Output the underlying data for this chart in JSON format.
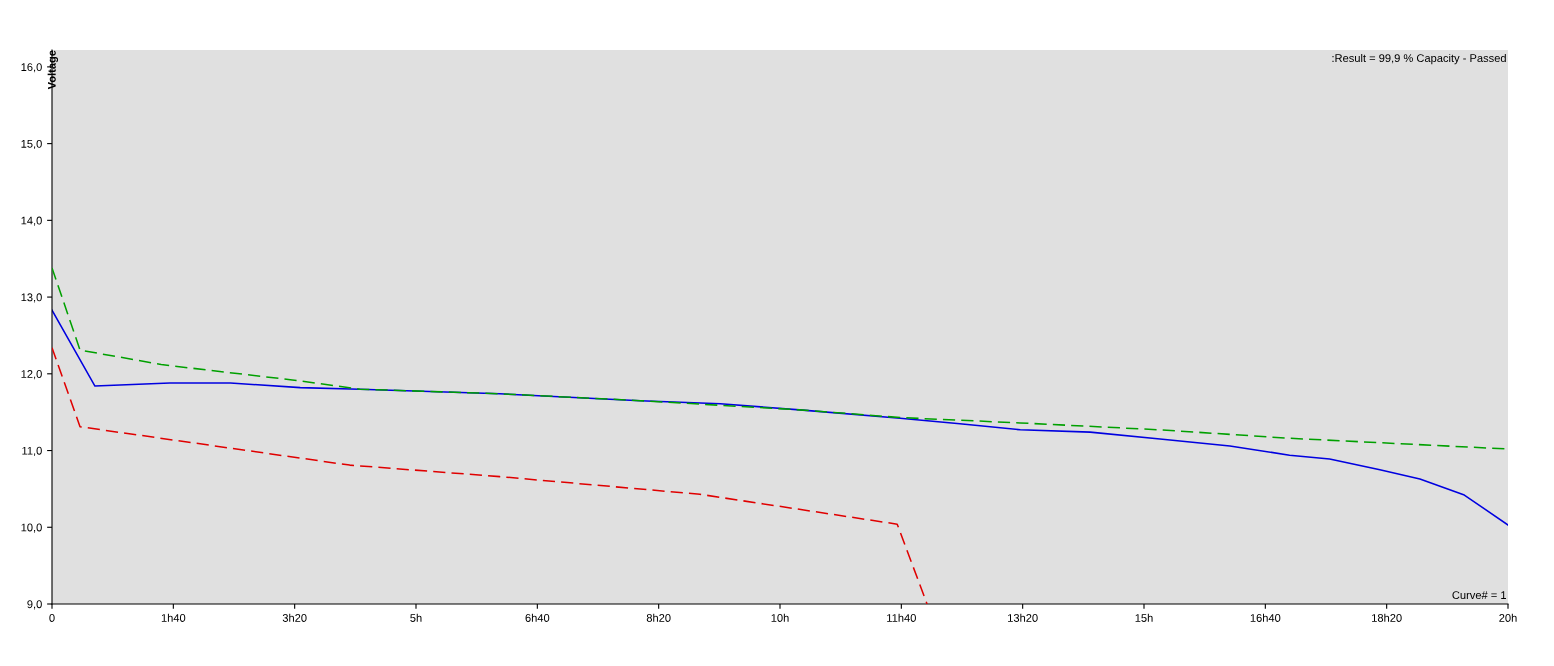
{
  "chart_data": {
    "type": "line",
    "ylabel": "Voltage",
    "annotations": [
      ":Result = 99,9 % Capacity - Passed",
      "Curve# = 1"
    ],
    "series": [
      {
        "color": "#00a000",
        "line_style": "dashed",
        "x": [
          0,
          0.385,
          1.5,
          3.3,
          4.23,
          6.15,
          8.08,
          10.27,
          11.65,
          13.3,
          15.22,
          17.0,
          20
        ],
        "values": [
          13.38,
          12.31,
          12.12,
          11.92,
          11.8,
          11.74,
          11.65,
          11.53,
          11.43,
          11.36,
          11.27,
          11.16,
          11.02
        ]
      },
      {
        "color": "#0000e0",
        "line_style": "solid",
        "x": [
          0,
          0.59,
          1.62,
          2.45,
          3.41,
          4.23,
          6.15,
          8.08,
          9.18,
          10.27,
          11.65,
          12.47,
          13.3,
          14.26,
          15.22,
          16.18,
          17.0,
          17.55,
          18.24,
          18.79,
          19.4,
          20
        ],
        "values": [
          12.83,
          11.84,
          11.88,
          11.88,
          11.82,
          11.8,
          11.74,
          11.65,
          11.61,
          11.53,
          11.42,
          11.35,
          11.27,
          11.24,
          11.15,
          11.06,
          10.94,
          10.89,
          10.75,
          10.63,
          10.42,
          10.03
        ]
      },
      {
        "color": "#e00000",
        "line_style": "dashed",
        "x": [
          0,
          0.385,
          4.09,
          6.15,
          8.9,
          11.61,
          12.02
        ],
        "values": [
          12.34,
          11.31,
          10.81,
          10.66,
          10.43,
          10.04,
          9.0
        ]
      }
    ],
    "xlim": [
      0,
      20
    ],
    "ylim": [
      9,
      16.22
    ],
    "xticks": [
      0,
      {
        "value": 1.6667,
        "label": "1h40"
      },
      {
        "value": 3.3333,
        "label": "3h20"
      },
      {
        "value": 5,
        "label": "5h"
      },
      {
        "value": 6.6667,
        "label": "6h40"
      },
      {
        "value": 8.3333,
        "label": "8h20"
      },
      {
        "value": 10,
        "label": "10h"
      },
      {
        "value": 11.6667,
        "label": "11h40"
      },
      {
        "value": 13.3333,
        "label": "13h20"
      },
      {
        "value": 15,
        "label": "15h"
      },
      {
        "value": 16.6667,
        "label": "16h40"
      },
      {
        "value": 18.3333,
        "label": "18h20"
      },
      {
        "value": 20,
        "label": "20h"
      }
    ],
    "yticks": [
      {
        "value": 9,
        "label": "9,0"
      },
      {
        "value": 10,
        "label": "10,0"
      },
      {
        "value": 11,
        "label": "11,0"
      },
      {
        "value": 12,
        "label": "12,0"
      },
      {
        "value": 13,
        "label": "13,0"
      },
      {
        "value": 14,
        "label": "14,0"
      },
      {
        "value": 15,
        "label": "15,0"
      },
      {
        "value": 16,
        "label": "16,0"
      }
    ],
    "grid": false,
    "legend": false,
    "marker": "none"
  }
}
